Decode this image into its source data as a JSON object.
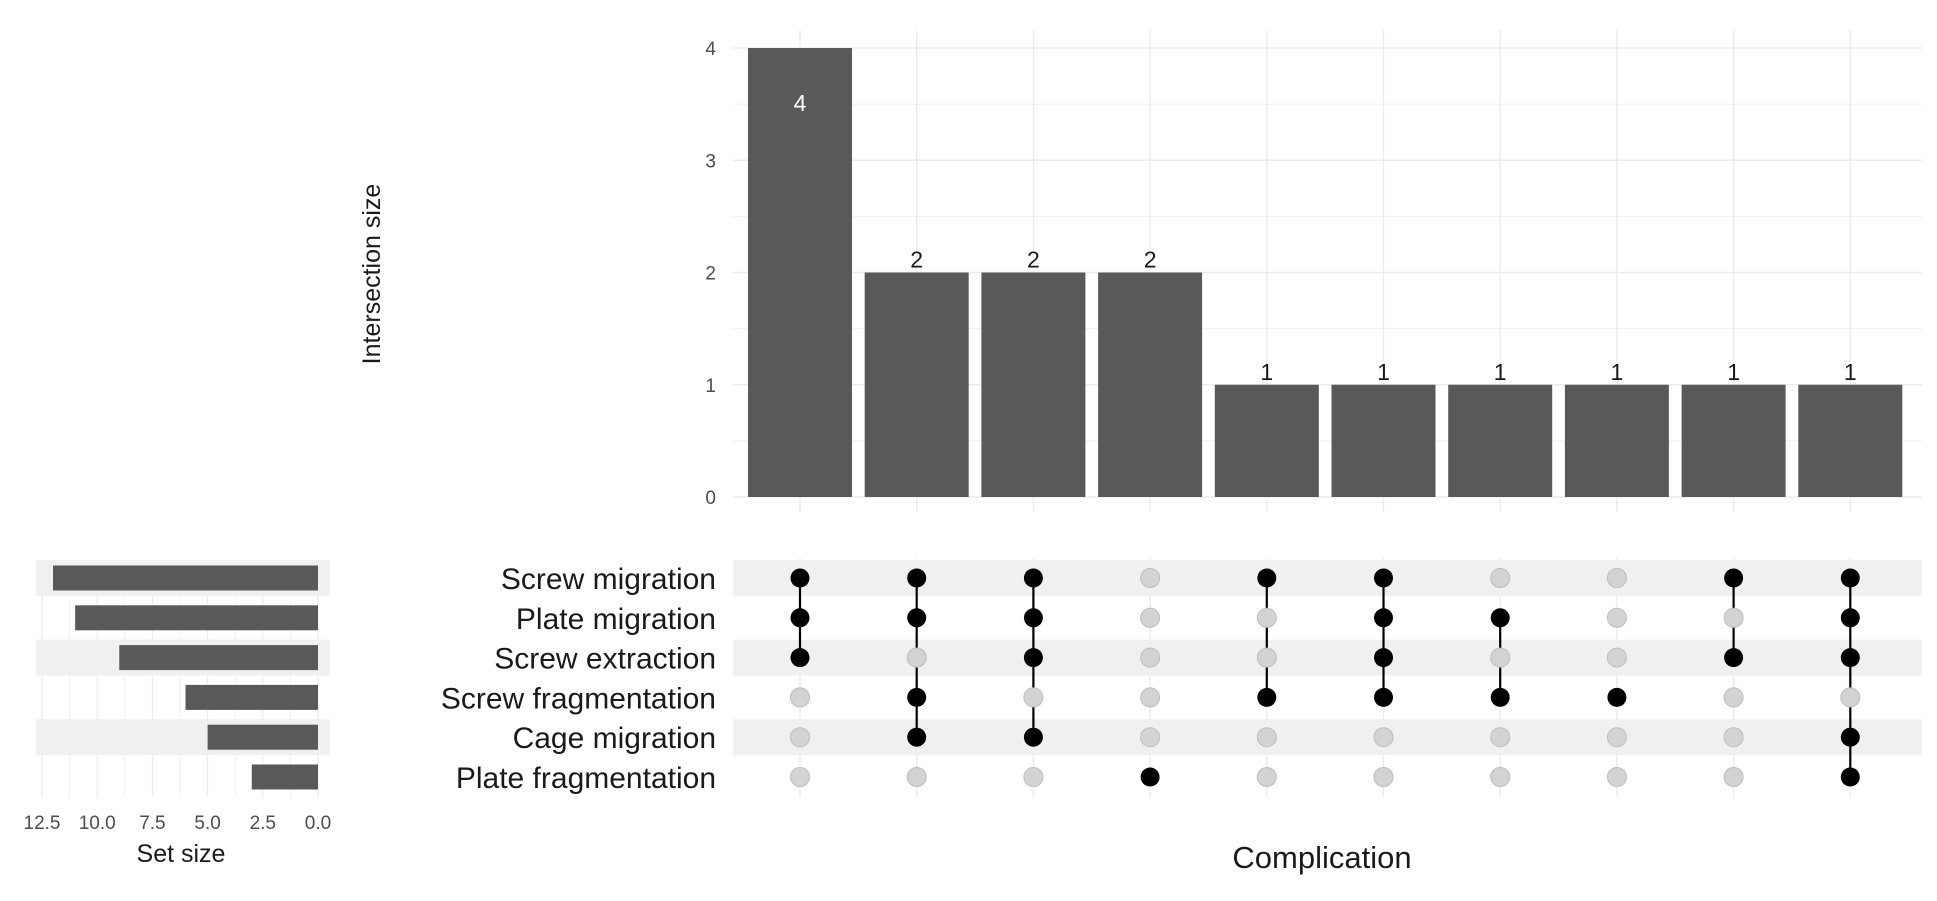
{
  "chart_data": {
    "type": "upset",
    "sets": [
      "Screw migration",
      "Plate migration",
      "Screw extraction",
      "Screw fragmentation",
      "Cage migration",
      "Plate fragmentation"
    ],
    "set_sizes": {
      "values": [
        12,
        11,
        9,
        6,
        5,
        3
      ],
      "xlabel": "Set size",
      "ticks": [
        "12.5",
        "10.0",
        "7.5",
        "5.0",
        "2.5",
        "0.0"
      ],
      "xlim": [
        0,
        12.5
      ],
      "reversed": true
    },
    "intersections": {
      "ylabel": "Intersection size",
      "xlabel": "Complication",
      "ylim": [
        0,
        4
      ],
      "yticks": [
        "0",
        "1",
        "2",
        "3",
        "4"
      ],
      "values": [
        4,
        2,
        2,
        2,
        1,
        1,
        1,
        1,
        1,
        1
      ],
      "labels": [
        "4",
        "2",
        "2",
        "2",
        "1",
        "1",
        "1",
        "1",
        "1",
        "1"
      ],
      "membership": [
        [
          1,
          1,
          1,
          0,
          0,
          0
        ],
        [
          1,
          1,
          0,
          1,
          1,
          0
        ],
        [
          1,
          1,
          1,
          0,
          1,
          0
        ],
        [
          0,
          0,
          0,
          0,
          0,
          1
        ],
        [
          1,
          0,
          0,
          1,
          0,
          0
        ],
        [
          1,
          1,
          1,
          1,
          0,
          0
        ],
        [
          0,
          1,
          0,
          1,
          0,
          0
        ],
        [
          0,
          0,
          0,
          1,
          0,
          0
        ],
        [
          1,
          0,
          1,
          0,
          0,
          0
        ],
        [
          1,
          1,
          1,
          0,
          1,
          1
        ]
      ]
    },
    "grid": true,
    "colors": {
      "bar": "#595959",
      "dot_active": "#000000",
      "dot_inactive": "#d3d3d3",
      "stripe": "#f0f0f0",
      "grid": "#ebebeb"
    }
  }
}
